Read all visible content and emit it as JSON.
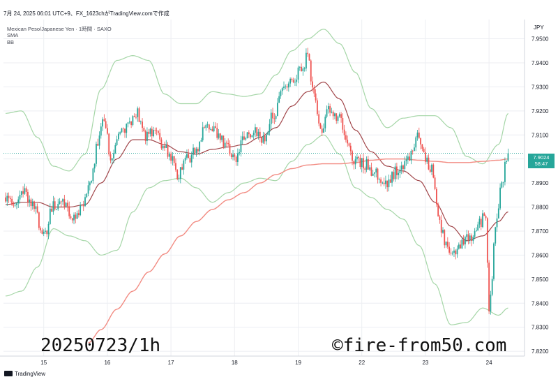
{
  "header": {
    "top_line": "7月 24, 2025 06:01 UTC+9、FX_1623chがTradingView.comで作成",
    "symbol_line": "Mexican Peso/Japanese Yen · 1時間 · SAXO",
    "sma_label": "SMA",
    "bb_label": "BB"
  },
  "axis": {
    "currency": "JPY"
  },
  "last_price": {
    "value": "7.9024",
    "countdown": "58:47"
  },
  "overlay": {
    "left_text": "20250723/1h",
    "right_text": "©fire-from50.com"
  },
  "footer": {
    "brand": "TradingView"
  },
  "colors": {
    "up": "#26a69a",
    "down": "#ef5350",
    "sma": "#f28b82",
    "bb_basis": "#a1464a",
    "bb_band": "#a5d6a7",
    "grid": "#eceef2"
  },
  "chart_data": {
    "type": "candlestick",
    "title": "",
    "xlabel": "",
    "ylabel": "",
    "ylim": [
      7.818,
      7.958
    ],
    "y_ticks": [
      "7.9500",
      "7.9400",
      "7.9300",
      "7.9200",
      "7.9100",
      "7.9000",
      "7.8900",
      "7.8800",
      "7.8700",
      "7.8600",
      "7.8500",
      "7.8400",
      "7.8300",
      "7.8200"
    ],
    "x_ticks": [
      {
        "label": "15",
        "bar": 24
      },
      {
        "label": "16",
        "bar": 64
      },
      {
        "label": "17",
        "bar": 104
      },
      {
        "label": "18",
        "bar": 144
      },
      {
        "label": "19",
        "bar": 184
      },
      {
        "label": "22",
        "bar": 224
      },
      {
        "label": "23",
        "bar": 264
      },
      {
        "label": "24",
        "bar": 304
      }
    ],
    "bar_count": 314,
    "candle_anchors": [
      [
        0,
        7.884
      ],
      [
        6,
        7.882
      ],
      [
        12,
        7.886
      ],
      [
        18,
        7.88
      ],
      [
        24,
        7.868
      ],
      [
        30,
        7.881
      ],
      [
        36,
        7.882
      ],
      [
        42,
        7.877
      ],
      [
        48,
        7.88
      ],
      [
        54,
        7.891
      ],
      [
        58,
        7.906
      ],
      [
        62,
        7.918
      ],
      [
        66,
        7.902
      ],
      [
        70,
        7.908
      ],
      [
        76,
        7.912
      ],
      [
        82,
        7.92
      ],
      [
        88,
        7.909
      ],
      [
        94,
        7.912
      ],
      [
        100,
        7.904
      ],
      [
        104,
        7.902
      ],
      [
        108,
        7.892
      ],
      [
        114,
        7.9
      ],
      [
        120,
        7.904
      ],
      [
        126,
        7.914
      ],
      [
        132,
        7.911
      ],
      [
        138,
        7.906
      ],
      [
        144,
        7.9
      ],
      [
        150,
        7.908
      ],
      [
        156,
        7.912
      ],
      [
        162,
        7.909
      ],
      [
        168,
        7.918
      ],
      [
        174,
        7.928
      ],
      [
        180,
        7.934
      ],
      [
        186,
        7.937
      ],
      [
        190,
        7.943
      ],
      [
        194,
        7.926
      ],
      [
        198,
        7.912
      ],
      [
        204,
        7.922
      ],
      [
        210,
        7.916
      ],
      [
        216,
        7.904
      ],
      [
        220,
        7.899
      ],
      [
        226,
        7.898
      ],
      [
        232,
        7.894
      ],
      [
        238,
        7.888
      ],
      [
        244,
        7.894
      ],
      [
        250,
        7.898
      ],
      [
        256,
        7.903
      ],
      [
        260,
        7.91
      ],
      [
        264,
        7.9
      ],
      [
        268,
        7.896
      ],
      [
        272,
        7.878
      ],
      [
        276,
        7.866
      ],
      [
        280,
        7.86
      ],
      [
        286,
        7.864
      ],
      [
        292,
        7.867
      ],
      [
        298,
        7.874
      ],
      [
        302,
        7.876
      ],
      [
        304,
        7.838
      ],
      [
        306,
        7.852
      ],
      [
        308,
        7.874
      ],
      [
        312,
        7.89
      ],
      [
        314,
        7.896
      ],
      [
        316,
        7.904
      ]
    ],
    "sma_anchors": [
      [
        52,
        7.8235
      ],
      [
        60,
        7.829
      ],
      [
        70,
        7.8375
      ],
      [
        80,
        7.845
      ],
      [
        90,
        7.853
      ],
      [
        100,
        7.8605
      ],
      [
        110,
        7.868
      ],
      [
        120,
        7.874
      ],
      [
        130,
        7.879
      ],
      [
        140,
        7.883
      ],
      [
        150,
        7.886
      ],
      [
        160,
        7.89
      ],
      [
        170,
        7.8935
      ],
      [
        180,
        7.896
      ],
      [
        190,
        7.8975
      ],
      [
        200,
        7.898
      ],
      [
        210,
        7.898
      ],
      [
        220,
        7.8985
      ],
      [
        230,
        7.8995
      ],
      [
        240,
        7.9
      ],
      [
        250,
        7.9
      ],
      [
        260,
        7.8995
      ],
      [
        270,
        7.899
      ],
      [
        280,
        7.8985
      ],
      [
        290,
        7.8985
      ],
      [
        300,
        7.899
      ],
      [
        310,
        7.8995
      ],
      [
        316,
        7.9
      ]
    ],
    "bb_basis_anchors": [
      [
        0,
        7.881
      ],
      [
        10,
        7.882
      ],
      [
        20,
        7.882
      ],
      [
        30,
        7.88
      ],
      [
        40,
        7.88
      ],
      [
        50,
        7.881
      ],
      [
        60,
        7.89
      ],
      [
        70,
        7.9
      ],
      [
        80,
        7.908
      ],
      [
        90,
        7.908
      ],
      [
        100,
        7.906
      ],
      [
        110,
        7.903
      ],
      [
        120,
        7.902
      ],
      [
        130,
        7.904
      ],
      [
        140,
        7.905
      ],
      [
        150,
        7.906
      ],
      [
        160,
        7.909
      ],
      [
        170,
        7.913
      ],
      [
        180,
        7.922
      ],
      [
        190,
        7.928
      ],
      [
        200,
        7.932
      ],
      [
        210,
        7.925
      ],
      [
        220,
        7.912
      ],
      [
        230,
        7.903
      ],
      [
        240,
        7.897
      ],
      [
        250,
        7.895
      ],
      [
        260,
        7.891
      ],
      [
        270,
        7.882
      ],
      [
        280,
        7.872
      ],
      [
        290,
        7.866
      ],
      [
        300,
        7.868
      ],
      [
        310,
        7.874
      ],
      [
        316,
        7.878
      ]
    ],
    "bb_upper_anchors": [
      [
        0,
        7.919
      ],
      [
        10,
        7.92
      ],
      [
        20,
        7.909
      ],
      [
        30,
        7.897
      ],
      [
        40,
        7.895
      ],
      [
        50,
        7.902
      ],
      [
        60,
        7.929
      ],
      [
        70,
        7.941
      ],
      [
        80,
        7.943
      ],
      [
        90,
        7.941
      ],
      [
        100,
        7.927
      ],
      [
        110,
        7.923
      ],
      [
        120,
        7.923
      ],
      [
        130,
        7.928
      ],
      [
        140,
        7.927
      ],
      [
        150,
        7.926
      ],
      [
        160,
        7.927
      ],
      [
        170,
        7.935
      ],
      [
        180,
        7.945
      ],
      [
        190,
        7.95
      ],
      [
        200,
        7.954
      ],
      [
        210,
        7.948
      ],
      [
        220,
        7.936
      ],
      [
        230,
        7.921
      ],
      [
        240,
        7.913
      ],
      [
        250,
        7.917
      ],
      [
        260,
        7.918
      ],
      [
        270,
        7.918
      ],
      [
        280,
        7.913
      ],
      [
        290,
        7.901
      ],
      [
        300,
        7.898
      ],
      [
        310,
        7.906
      ],
      [
        316,
        7.919
      ]
    ],
    "bb_lower_anchors": [
      [
        0,
        7.843
      ],
      [
        10,
        7.845
      ],
      [
        20,
        7.855
      ],
      [
        30,
        7.871
      ],
      [
        40,
        7.868
      ],
      [
        50,
        7.866
      ],
      [
        60,
        7.86
      ],
      [
        70,
        7.862
      ],
      [
        80,
        7.878
      ],
      [
        90,
        7.888
      ],
      [
        100,
        7.891
      ],
      [
        110,
        7.892
      ],
      [
        120,
        7.888
      ],
      [
        130,
        7.882
      ],
      [
        140,
        7.886
      ],
      [
        150,
        7.89
      ],
      [
        160,
        7.892
      ],
      [
        170,
        7.891
      ],
      [
        180,
        7.899
      ],
      [
        190,
        7.906
      ],
      [
        200,
        7.91
      ],
      [
        210,
        7.902
      ],
      [
        220,
        7.888
      ],
      [
        230,
        7.884
      ],
      [
        240,
        7.879
      ],
      [
        250,
        7.875
      ],
      [
        260,
        7.864
      ],
      [
        270,
        7.848
      ],
      [
        280,
        7.831
      ],
      [
        290,
        7.832
      ],
      [
        300,
        7.838
      ],
      [
        310,
        7.835
      ],
      [
        316,
        7.838
      ]
    ]
  }
}
